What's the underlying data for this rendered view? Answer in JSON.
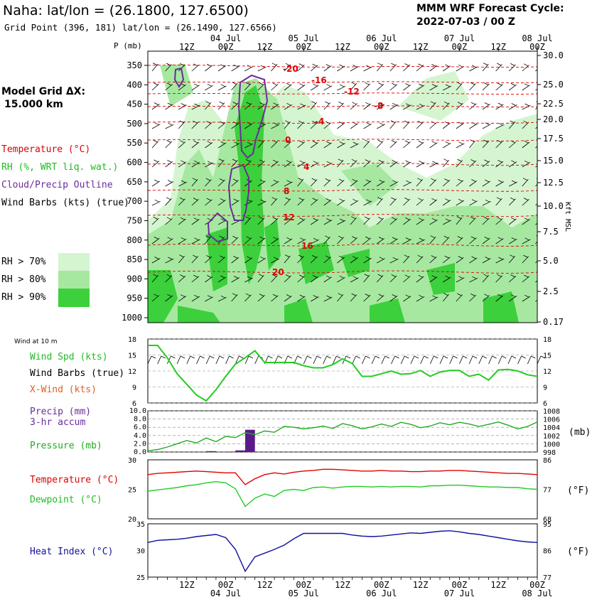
{
  "header": {
    "title": "Naha:  lat/lon = (26.1800, 127.6500)",
    "subtitle": "Grid Point (396, 181) lat/lon = (26.1490, 127.6566)",
    "cycle_label": "MMM WRF Forecast Cycle:",
    "cycle_value": "2022-07-03 / 00  Z"
  },
  "left_panel": {
    "model_grid_label": "Model Grid ΔX:",
    "model_grid_value": "15.000 km",
    "legend_temperature": "Temperature (°C)",
    "legend_rh": "RH (%, WRT liq. wat.)",
    "legend_cloud": "Cloud/Precip Outline",
    "legend_wind": "Wind Barbs (kts) (true)",
    "rh_70": "RH > 70%",
    "rh_80": "RH > 80%",
    "rh_90": "RH > 90%",
    "wind_10m": "Wind at 10 m",
    "wind_spd": "Wind Spd (kts)",
    "wind_barbs": "Wind Barbs (true)",
    "xwind": "X-Wind (kts)",
    "precip": "Precip (mm)",
    "precip_accum": "3-hr accum",
    "pressure": "Pressure (mb)",
    "temperature": "Temperature (°C)",
    "dewpoint": "Dewpoint (°C)",
    "heat_index": "Heat Index (°C)"
  },
  "colors": {
    "temperature": "#e00000",
    "rh_label": "#22bb22",
    "cloud": "#6a2c9a",
    "rh70": "#d4f5d0",
    "rh80": "#a6e8a0",
    "rh90": "#3cd03c",
    "heat_index": "#1010a0",
    "xwind": "#e06020",
    "pressure_line": "#22aa22"
  },
  "chart_data": [
    {
      "type": "heatmap",
      "name": "time-height cross section",
      "y_axis_label": "P (mb)",
      "y_unit_right": "Kft MSL",
      "pressure_levels": [
        350,
        400,
        450,
        500,
        550,
        600,
        650,
        700,
        750,
        800,
        850,
        900,
        950,
        1000
      ],
      "height_ticks_kft": [
        "30.0",
        "25.0",
        "22.5",
        "20.0",
        "17.5",
        "15.0",
        "12.5",
        "10.0",
        "7.5",
        "5.0",
        "2.5",
        "0.17"
      ],
      "x_tick_labels": [
        "12Z",
        "00Z",
        "12Z",
        "00Z",
        "12Z",
        "00Z",
        "12Z",
        "00Z",
        "12Z",
        "00Z"
      ],
      "x_date_labels": [
        "04 Jul",
        "05 Jul",
        "06 Jul",
        "07 Jul",
        "08 Jul"
      ],
      "temperature_contours_c": [
        "-20",
        "-16",
        "-12",
        "-8",
        "-4",
        "0",
        "4",
        "8",
        "12",
        "16",
        "20"
      ],
      "rh_thresholds_pct": [
        70,
        80,
        90
      ]
    },
    {
      "type": "line",
      "name": "Wind Spd (kts)",
      "hours": [
        0,
        3,
        6,
        9,
        12,
        15,
        18,
        21,
        24,
        27,
        30,
        33,
        36,
        39,
        42,
        45,
        48,
        51,
        54,
        57,
        60,
        63,
        66,
        69,
        72,
        75,
        78,
        81,
        84,
        87,
        90,
        93,
        96,
        99,
        102,
        105,
        108,
        111,
        114,
        117,
        120
      ],
      "values": [
        16.8,
        16.8,
        14.5,
        11.5,
        9.5,
        7.5,
        6.4,
        8.5,
        11,
        13.3,
        14.5,
        15.8,
        13.6,
        13.6,
        13.6,
        13.6,
        13,
        12.6,
        12.6,
        13.2,
        14.3,
        13.4,
        11,
        11,
        11.5,
        12,
        11.4,
        11.5,
        12.1,
        11,
        11.8,
        12.1,
        12.1,
        11,
        11.4,
        10.3,
        12.2,
        12.3,
        12,
        11.3,
        11
      ],
      "ylim": [
        6,
        18
      ],
      "y_ticks": [
        "18",
        "15",
        "12",
        "9",
        "6"
      ]
    },
    {
      "type": "line",
      "name": "Pressure (mb)",
      "hours": [
        0,
        3,
        6,
        9,
        12,
        15,
        18,
        21,
        24,
        27,
        30,
        33,
        36,
        39,
        42,
        45,
        48,
        51,
        54,
        57,
        60,
        63,
        66,
        69,
        72,
        75,
        78,
        81,
        84,
        87,
        90,
        93,
        96,
        99,
        102,
        105,
        108,
        111,
        114,
        117,
        120
      ],
      "values": [
        998.3,
        998.6,
        999.2,
        1000,
        1000.8,
        1000.2,
        1001.4,
        1000.5,
        1001.8,
        1001.5,
        1002.7,
        1002.2,
        1003.1,
        1002.8,
        1004.2,
        1004,
        1003.6,
        1003.9,
        1004.3,
        1003.7,
        1004.9,
        1004.4,
        1003.6,
        1004.1,
        1004.8,
        1004.2,
        1005.2,
        1004.7,
        1003.9,
        1004.3,
        1005.1,
        1004.6,
        1005.2,
        1004.8,
        1004.2,
        1004.7,
        1005.3,
        1004.5,
        1003.6,
        1004.2,
        1005.3
      ],
      "ylim": [
        998,
        1008
      ],
      "y_ticks_right": [
        "1008",
        "1006",
        "1004",
        "1002",
        "1000",
        "998"
      ],
      "y_unit_right": "(mb)"
    },
    {
      "type": "bar",
      "name": "Precip (mm) 3-hr accum",
      "hours": [
        9,
        12,
        15,
        18,
        21,
        24,
        27,
        30,
        33
      ],
      "values": [
        0,
        0,
        0,
        0,
        0.2,
        0,
        0.1,
        0.4,
        5.4
      ],
      "ylim": [
        0,
        10
      ],
      "y_ticks": [
        "10.0",
        "8.0",
        "6.0",
        "4.0",
        "2.0",
        "0.0"
      ]
    },
    {
      "type": "line",
      "name": "Temperature / Dewpoint",
      "hours": [
        0,
        3,
        6,
        9,
        12,
        15,
        18,
        21,
        24,
        27,
        30,
        33,
        36,
        39,
        42,
        45,
        48,
        51,
        54,
        57,
        60,
        63,
        66,
        69,
        72,
        75,
        78,
        81,
        84,
        87,
        90,
        93,
        96,
        99,
        102,
        105,
        108,
        111,
        114,
        117,
        120
      ],
      "series": [
        {
          "name": "Temperature (°C)",
          "values": [
            27.5,
            27.7,
            27.8,
            27.9,
            28,
            28.1,
            28,
            27.9,
            27.8,
            27.8,
            25.8,
            26.8,
            27.5,
            27.8,
            27.6,
            27.9,
            28.1,
            28.2,
            28.4,
            28.4,
            28.3,
            28.2,
            28.1,
            28.1,
            28.2,
            28.1,
            28.1,
            28,
            28,
            28.1,
            28.1,
            28.2,
            28.2,
            28.1,
            28,
            27.9,
            27.8,
            27.7,
            27.7,
            27.6,
            27.5
          ]
        },
        {
          "name": "Dewpoint (°C)",
          "values": [
            24.7,
            24.9,
            25.1,
            25.3,
            25.6,
            25.8,
            26.1,
            26.3,
            26.1,
            25.1,
            22.1,
            23.5,
            24.2,
            23.8,
            24.8,
            25,
            24.8,
            25.3,
            25.4,
            25.2,
            25.4,
            25.5,
            25.5,
            25.4,
            25.5,
            25.4,
            25.5,
            25.5,
            25.4,
            25.6,
            25.6,
            25.7,
            25.7,
            25.6,
            25.5,
            25.4,
            25.4,
            25.3,
            25.3,
            25.1,
            25
          ]
        }
      ],
      "ylim": [
        20,
        30
      ],
      "y_ticks_left": [
        "30",
        "25",
        "20"
      ],
      "y_ticks_right": [
        "86",
        "77",
        "68"
      ],
      "y_unit_right": "(°F)"
    },
    {
      "type": "line",
      "name": "Heat Index (°C)",
      "hours": [
        0,
        3,
        6,
        9,
        12,
        15,
        18,
        21,
        24,
        27,
        30,
        33,
        36,
        39,
        42,
        45,
        48,
        51,
        54,
        57,
        60,
        63,
        66,
        69,
        72,
        75,
        78,
        81,
        84,
        87,
        90,
        93,
        96,
        99,
        102,
        105,
        108,
        111,
        114,
        117,
        120
      ],
      "values": [
        31.5,
        31.9,
        32,
        32.1,
        32.3,
        32.6,
        32.8,
        33,
        32.4,
        30.2,
        26.1,
        28.8,
        29.5,
        30.2,
        31,
        32.2,
        33.2,
        33.2,
        33.2,
        33.2,
        33.2,
        32.9,
        32.7,
        32.6,
        32.7,
        32.9,
        33.1,
        33.3,
        33.2,
        33.4,
        33.6,
        33.7,
        33.5,
        33.2,
        33,
        32.7,
        32.4,
        32.1,
        31.8,
        31.6,
        31.5
      ],
      "ylim": [
        25,
        35
      ],
      "y_ticks_left": [
        "35",
        "30",
        "25"
      ],
      "y_ticks_right": [
        "95",
        "86",
        "77"
      ],
      "y_unit_right": "(°F)"
    }
  ]
}
